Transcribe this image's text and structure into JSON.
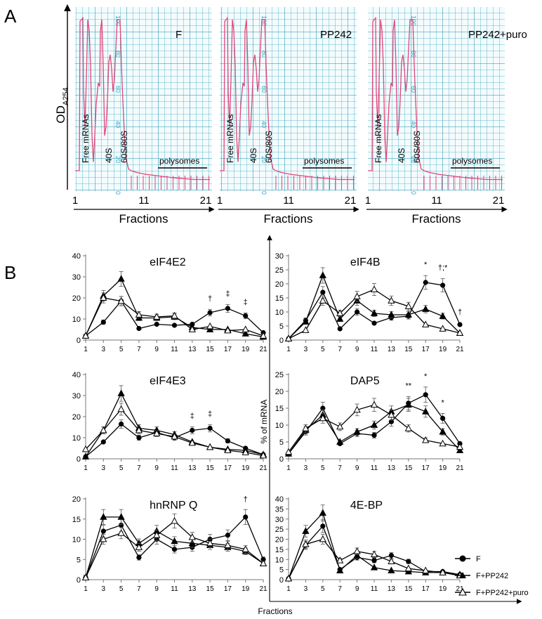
{
  "panel_a": {
    "letter": "A",
    "ylabel": "OD",
    "ylabel_sub": "A254",
    "xlabel": "Fractions",
    "labels": {
      "free": "Free mRNAs",
      "s40": "40S",
      "s6080": "60S/80S",
      "poly": "polysomes"
    },
    "ticks": [
      "1",
      "11",
      "21"
    ],
    "grid_scale": [
      "100",
      "80",
      "60",
      "40",
      "20",
      "0"
    ],
    "conditions": [
      "F",
      "PP242",
      "PP242+puro"
    ],
    "colors": {
      "grid": "#35a9bf",
      "trace": "#e0477a"
    }
  },
  "panel_b": {
    "letter": "B",
    "ylabel": "% of mRNA",
    "xlabel": "Fractions",
    "legend": [
      "F",
      "F+PP242",
      "F+PP242+puro"
    ]
  },
  "chart_data": [
    {
      "type": "line",
      "title": "eIF4E2",
      "ylim": [
        0,
        40
      ],
      "yticks": [
        0,
        10,
        20,
        30,
        40
      ],
      "x": [
        1,
        3,
        5,
        7,
        9,
        11,
        13,
        15,
        17,
        19,
        21
      ],
      "series": [
        {
          "name": "F",
          "values": [
            2,
            8.5,
            18.5,
            5.5,
            7.5,
            7,
            7.5,
            13,
            15,
            11.5,
            3.5
          ]
        },
        {
          "name": "F+PP242",
          "values": [
            2,
            21,
            29,
            10.5,
            10.5,
            11,
            6,
            5,
            5,
            3,
            1.5
          ]
        },
        {
          "name": "F+PP242+puro",
          "values": [
            2,
            20,
            18.5,
            12,
            11,
            11.5,
            5,
            6.5,
            4.5,
            5,
            2
          ]
        }
      ],
      "annotations": [
        {
          "x": 15,
          "text": "†"
        },
        {
          "x": 17,
          "text": "‡"
        },
        {
          "x": 19,
          "text": "‡"
        }
      ]
    },
    {
      "type": "line",
      "title": "eIF4B",
      "ylim": [
        0,
        30
      ],
      "yticks": [
        0,
        5,
        10,
        15,
        20,
        25,
        30
      ],
      "x": [
        1,
        3,
        5,
        7,
        9,
        11,
        13,
        15,
        17,
        19,
        21
      ],
      "series": [
        {
          "name": "F",
          "values": [
            0.5,
            7,
            17,
            4,
            10,
            6,
            8,
            8.5,
            20.5,
            19.5,
            5.5
          ]
        },
        {
          "name": "F+PP242",
          "values": [
            0.5,
            6.5,
            23,
            7.5,
            14,
            9.5,
            9,
            9,
            11,
            8.5,
            2.5
          ]
        },
        {
          "name": "F+PP242+puro",
          "values": [
            0.5,
            3.5,
            14,
            9.5,
            15.5,
            18,
            14,
            12,
            5.5,
            4,
            2.5
          ]
        }
      ],
      "annotations": [
        {
          "x": 17,
          "text": "*"
        },
        {
          "x": 19,
          "text": "†;*"
        },
        {
          "x": 21,
          "text": "†"
        }
      ]
    },
    {
      "type": "line",
      "title": "eIF4E3",
      "ylim": [
        0,
        40
      ],
      "yticks": [
        0,
        10,
        20,
        30,
        40
      ],
      "x": [
        1,
        3,
        5,
        7,
        9,
        11,
        13,
        15,
        17,
        19,
        21
      ],
      "series": [
        {
          "name": "F",
          "values": [
            1,
            8,
            16.5,
            10,
            12.5,
            10,
            13.5,
            14.5,
            8.5,
            5,
            2
          ]
        },
        {
          "name": "F+PP242",
          "values": [
            1,
            13.5,
            31,
            14.5,
            13.5,
            11.5,
            8,
            5.5,
            4.5,
            4,
            2
          ]
        },
        {
          "name": "F+PP242+puro",
          "values": [
            4.5,
            13.5,
            23.5,
            13.5,
            12,
            10.5,
            7.5,
            5.5,
            4,
            3,
            1.5
          ]
        }
      ],
      "annotations": [
        {
          "x": 13,
          "text": "‡"
        },
        {
          "x": 15,
          "text": "‡"
        }
      ]
    },
    {
      "type": "line",
      "title": "DAP5",
      "ylim": [
        0,
        25
      ],
      "yticks": [
        0,
        5,
        10,
        15,
        20,
        25
      ],
      "x": [
        1,
        3,
        5,
        7,
        9,
        11,
        13,
        15,
        17,
        19,
        21
      ],
      "series": [
        {
          "name": "F",
          "values": [
            1.5,
            8,
            15,
            4.5,
            7.5,
            7,
            11,
            16.5,
            19,
            12,
            4.5
          ]
        },
        {
          "name": "F+PP242",
          "values": [
            1.5,
            8.5,
            13,
            5,
            8,
            10,
            14,
            16,
            14,
            8,
            2.5
          ]
        },
        {
          "name": "F+PP242+puro",
          "values": [
            2,
            9,
            12,
            9.5,
            14.5,
            16,
            13,
            9,
            5.5,
            4.5,
            3.5
          ]
        }
      ],
      "annotations": [
        {
          "x": 15,
          "text": "**"
        },
        {
          "x": 17,
          "text": "*"
        },
        {
          "x": 19,
          "text": "*"
        }
      ]
    },
    {
      "type": "line",
      "title": "hnRNP Q",
      "ylim": [
        0,
        20
      ],
      "yticks": [
        0,
        5,
        10,
        15,
        20
      ],
      "x": [
        1,
        3,
        5,
        7,
        9,
        11,
        13,
        15,
        17,
        19,
        21
      ],
      "series": [
        {
          "name": "F",
          "values": [
            0.5,
            12,
            13.5,
            5.5,
            10,
            7.5,
            8,
            10,
            11,
            15.5,
            5
          ]
        },
        {
          "name": "F+PP242",
          "values": [
            0.5,
            15.5,
            15.5,
            9,
            12,
            9.5,
            9,
            8.5,
            8,
            7,
            4
          ]
        },
        {
          "name": "F+PP242+puro",
          "values": [
            0.5,
            10,
            11.5,
            8,
            11,
            14.5,
            10.5,
            9,
            8.5,
            7.5,
            4
          ]
        }
      ],
      "annotations": [
        {
          "x": 19,
          "text": "†"
        }
      ]
    },
    {
      "type": "line",
      "title": "4E-BP",
      "ylim": [
        0,
        40
      ],
      "yticks": [
        0,
        5,
        10,
        15,
        20,
        25,
        30,
        35,
        40
      ],
      "x": [
        1,
        3,
        5,
        7,
        9,
        11,
        13,
        15,
        17,
        19,
        21
      ],
      "series": [
        {
          "name": "F",
          "values": [
            0.5,
            17,
            26.5,
            5,
            11,
            9.5,
            12,
            9,
            4,
            4,
            2.5
          ]
        },
        {
          "name": "F+PP242",
          "values": [
            0.5,
            24,
            33,
            4.5,
            12,
            6,
            4.5,
            4,
            3.5,
            3.5,
            2.5
          ]
        },
        {
          "name": "F+PP242+puro",
          "values": [
            0.5,
            17.5,
            20,
            9.5,
            14,
            12.5,
            9,
            5.5,
            4.5,
            3.5,
            2
          ]
        }
      ],
      "annotations": []
    }
  ]
}
